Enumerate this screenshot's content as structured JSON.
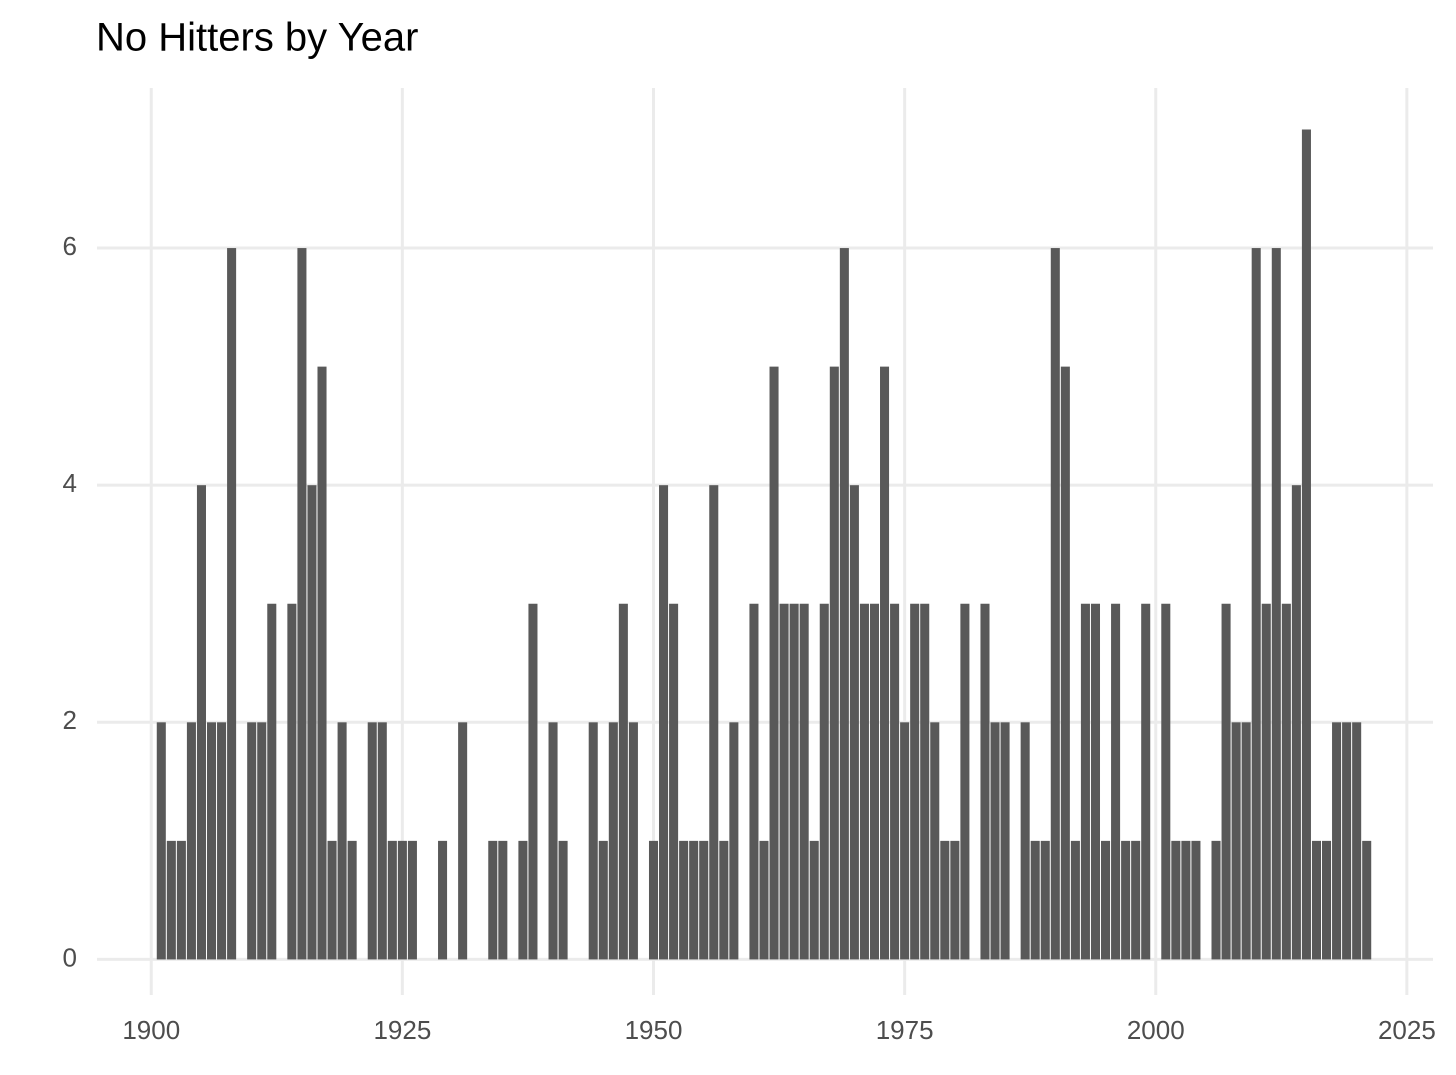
{
  "chart_data": {
    "type": "bar",
    "title": "No Hitters by Year",
    "x": [
      1901,
      1902,
      1903,
      1904,
      1905,
      1906,
      1907,
      1908,
      1909,
      1910,
      1911,
      1912,
      1913,
      1914,
      1915,
      1916,
      1917,
      1918,
      1919,
      1920,
      1921,
      1922,
      1923,
      1924,
      1925,
      1926,
      1927,
      1928,
      1929,
      1930,
      1931,
      1932,
      1933,
      1934,
      1935,
      1936,
      1937,
      1938,
      1939,
      1940,
      1941,
      1942,
      1943,
      1944,
      1945,
      1946,
      1947,
      1948,
      1949,
      1950,
      1951,
      1952,
      1953,
      1954,
      1955,
      1956,
      1957,
      1958,
      1959,
      1960,
      1961,
      1962,
      1963,
      1964,
      1965,
      1966,
      1967,
      1968,
      1969,
      1970,
      1971,
      1972,
      1973,
      1974,
      1975,
      1976,
      1977,
      1978,
      1979,
      1980,
      1981,
      1982,
      1983,
      1984,
      1985,
      1986,
      1987,
      1988,
      1989,
      1990,
      1991,
      1992,
      1993,
      1994,
      1995,
      1996,
      1997,
      1998,
      1999,
      2000,
      2001,
      2002,
      2003,
      2004,
      2005,
      2006,
      2007,
      2008,
      2009,
      2010,
      2011,
      2012,
      2013,
      2014,
      2015,
      2016,
      2017,
      2018,
      2019,
      2020,
      2021
    ],
    "values": [
      2,
      1,
      1,
      2,
      4,
      2,
      2,
      6,
      0,
      2,
      2,
      3,
      0,
      3,
      6,
      4,
      5,
      1,
      2,
      1,
      0,
      2,
      2,
      1,
      1,
      1,
      0,
      0,
      1,
      0,
      2,
      0,
      0,
      1,
      1,
      0,
      1,
      3,
      0,
      2,
      1,
      0,
      0,
      2,
      1,
      2,
      3,
      2,
      0,
      1,
      4,
      3,
      1,
      1,
      1,
      4,
      1,
      2,
      0,
      3,
      1,
      5,
      3,
      3,
      3,
      1,
      3,
      5,
      6,
      4,
      3,
      3,
      5,
      3,
      2,
      3,
      3,
      2,
      1,
      1,
      3,
      0,
      3,
      2,
      2,
      0,
      2,
      1,
      1,
      6,
      5,
      1,
      3,
      3,
      1,
      3,
      1,
      1,
      3,
      0,
      3,
      1,
      1,
      1,
      0,
      1,
      3,
      2,
      2,
      6,
      3,
      6,
      3,
      4,
      7,
      1,
      1,
      2,
      2,
      2,
      1
    ],
    "color": "#595959",
    "xlim": [
      1894.6,
      2027.6
    ],
    "xticks": [
      1900,
      1925,
      1950,
      1975,
      2000,
      2025
    ],
    "ylim": [
      -0.3,
      7.35
    ],
    "yticks": [
      0,
      2,
      4,
      6
    ],
    "grid": true
  }
}
